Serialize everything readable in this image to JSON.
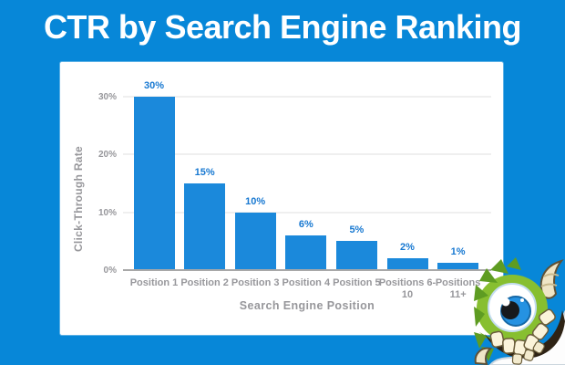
{
  "title": "CTR by Search Engine Ranking",
  "colors": {
    "background": "#0787D8",
    "bar": "#1B89DB",
    "data_label": "#1778D1",
    "axis_text": "#97979B",
    "gridline": "#EFEFEF",
    "axis_line": "#A8A8A8",
    "card": "#FFFFFF",
    "title_text": "#FFFFFF"
  },
  "chart_data": {
    "type": "bar",
    "title": "CTR by Search Engine Ranking",
    "categories": [
      "Position 1",
      "Position 2",
      "Position 3",
      "Position 4",
      "Position 5",
      "Positions 6-10",
      "Positions 11+"
    ],
    "values": [
      30,
      15,
      10,
      6,
      5,
      2,
      1
    ],
    "data_labels": [
      "30%",
      "15%",
      "10%",
      "6%",
      "5%",
      "2%",
      "1%"
    ],
    "xlabel": "Search Engine Position",
    "ylabel": "Click-Through Rate",
    "yticks": [
      {
        "value": 30,
        "label": "30%"
      },
      {
        "value": 20,
        "label": "20%"
      },
      {
        "value": 10,
        "label": "10%"
      },
      {
        "value": 0,
        "label": "0%"
      }
    ],
    "ylim": [
      0,
      30
    ],
    "grid": true,
    "legend": false
  },
  "mascot": {
    "icon": "monster-mascot"
  }
}
